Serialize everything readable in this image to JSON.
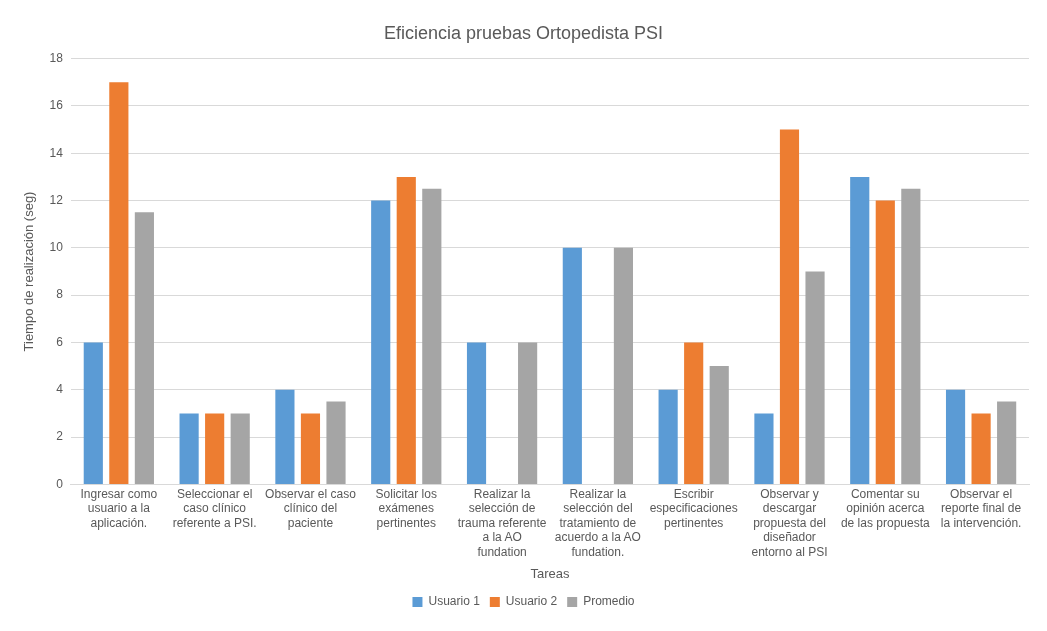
{
  "chart_data": {
    "type": "bar",
    "title": "Eficiencia pruebas Ortopedista PSI",
    "xlabel": "Tareas",
    "ylabel": "Tiempo de realización (seg)",
    "categories": [
      "Ingresar como usuario a la aplicación.",
      "Seleccionar el caso clínico referente a PSI.",
      "Observar el caso clínico del paciente",
      "Solicitar los exámenes pertinentes",
      "Realizar la selección de trauma referente a la AO fundation",
      "Realizar la selección del tratamiento de acuerdo a la AO fundation.",
      "Escribir especificaciones pertinentes",
      "Observar y descargar propuesta del diseñador entorno al PSI",
      "Comentar su opinión acerca de las propuesta",
      "Observar el reporte final de la intervención."
    ],
    "series": [
      {
        "name": "Usuario 1",
        "color": "#5b9bd5",
        "values": [
          6,
          3,
          4,
          12,
          6,
          10,
          4,
          3,
          13,
          4
        ]
      },
      {
        "name": "Usuario 2",
        "color": "#ed7d31",
        "values": [
          17,
          3,
          3,
          13,
          null,
          null,
          6,
          15,
          12,
          3
        ]
      },
      {
        "name": "Promedio",
        "color": "#a5a5a5",
        "values": [
          11.5,
          3,
          3.5,
          12.5,
          6,
          10,
          5,
          9,
          12.5,
          3.5
        ]
      }
    ],
    "ylim": [
      0,
      18
    ],
    "yticks": [
      0,
      2,
      4,
      6,
      8,
      10,
      12,
      14,
      16,
      18
    ],
    "grid": "y",
    "legend": "bottom"
  }
}
